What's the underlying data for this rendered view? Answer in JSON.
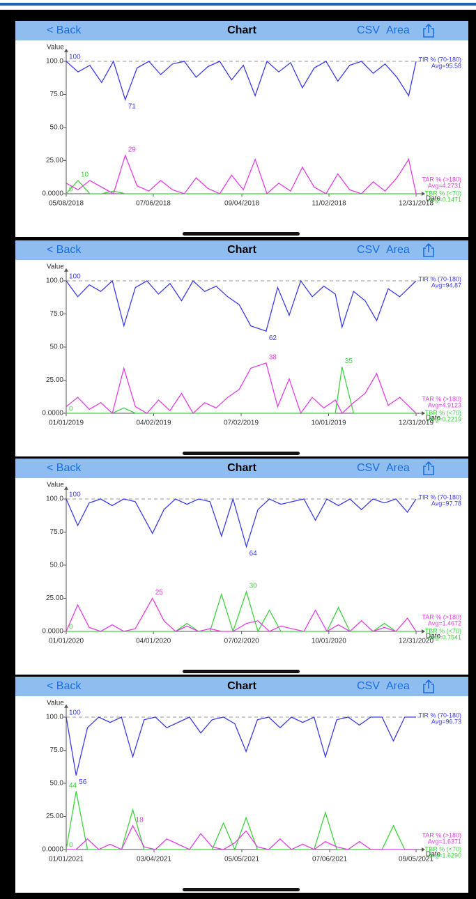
{
  "nav_bars": [
    {
      "back": "< Back",
      "title": "Chart",
      "csv": "CSV",
      "area": "Area"
    },
    {
      "back": "< Back",
      "title": "Chart",
      "csv": "CSV",
      "area": "Area"
    },
    {
      "back": "< Back",
      "title": "Chart",
      "csv": "CSV",
      "area": "Area"
    },
    {
      "back": "< Back",
      "title": "Chart",
      "csv": "CSV",
      "area": "Area"
    }
  ],
  "chart_data": [
    {
      "type": "line",
      "y_label": "Value",
      "x_label": "Date",
      "ylim": [
        0,
        107
      ],
      "reference_line": 100,
      "yticks": [
        {
          "value": 0,
          "label": "0.0000"
        },
        {
          "value": 25,
          "label": "25.00"
        },
        {
          "value": 50,
          "label": "50.0"
        },
        {
          "value": 75,
          "label": "75.0"
        },
        {
          "value": 100,
          "label": "100.0"
        }
      ],
      "xlim": [
        "05/08/2018",
        "12/31/2018"
      ],
      "xticks": [
        "05/08/2018",
        "07/06/2018",
        "09/04/2018",
        "11/02/2018",
        "12/31/2018"
      ],
      "x": [
        "05/08/2018",
        "05/16/2018",
        "05/24/2018",
        "06/01/2018",
        "06/09/2018",
        "06/17/2018",
        "06/25/2018",
        "07/03/2018",
        "07/11/2018",
        "07/19/2018",
        "07/27/2018",
        "08/04/2018",
        "08/12/2018",
        "08/20/2018",
        "08/28/2018",
        "09/05/2018",
        "09/13/2018",
        "09/21/2018",
        "09/29/2018",
        "10/07/2018",
        "10/15/2018",
        "10/23/2018",
        "10/31/2018",
        "11/08/2018",
        "11/16/2018",
        "11/24/2018",
        "12/02/2018",
        "12/10/2018",
        "12/18/2018",
        "12/26/2018",
        "12/31/2018"
      ],
      "series": [
        {
          "name": "TIR % (70-180)",
          "avg_label": "Avg=95.58",
          "color": "#3b3be6",
          "legend": "top",
          "values": [
            100,
            92,
            97,
            84,
            100,
            71,
            95,
            100,
            90,
            98,
            100,
            88,
            96,
            100,
            86,
            97,
            74,
            100,
            92,
            99,
            80,
            95,
            100,
            85,
            97,
            100,
            91,
            98,
            88,
            74,
            100
          ]
        },
        {
          "name": "TAR % (>180)",
          "avg_label": "Avg=4.2731",
          "color": "#e23ee2",
          "legend": "bottom",
          "values": [
            8,
            3,
            10,
            5,
            0,
            29,
            6,
            2,
            10,
            3,
            0,
            12,
            4,
            0,
            14,
            3,
            26,
            0,
            8,
            2,
            20,
            5,
            0,
            15,
            3,
            0,
            9,
            2,
            12,
            26,
            0
          ]
        },
        {
          "name": "TBR % (<70)",
          "avg_label": "Avg=0.1471",
          "color": "#3ed23e",
          "legend": "bottom",
          "values": [
            0,
            10,
            0,
            0,
            2,
            0,
            0,
            0,
            0,
            0,
            0,
            0,
            0,
            0,
            0,
            0,
            0,
            0,
            0,
            0,
            0,
            0,
            0,
            0,
            0,
            0,
            0,
            0,
            0,
            0,
            0
          ]
        }
      ],
      "annotations": [
        {
          "x": "05/08/2018",
          "value": 100,
          "color": "#3b3be6"
        },
        {
          "x": "06/17/2018",
          "value": 71,
          "color": "#3b3be6"
        },
        {
          "x": "06/17/2018",
          "value": 29,
          "color": "#e23ee2"
        },
        {
          "x": "05/16/2018",
          "value": 10,
          "color": "#3ed23e"
        },
        {
          "x": "05/08/2018",
          "value": 0,
          "color": "#3ed23e"
        }
      ]
    },
    {
      "type": "line",
      "y_label": "Value",
      "x_label": "Date",
      "ylim": [
        0,
        107
      ],
      "reference_line": 100,
      "yticks": [
        {
          "value": 0,
          "label": "0.0000"
        },
        {
          "value": 25,
          "label": "25.00"
        },
        {
          "value": 50,
          "label": "50.0"
        },
        {
          "value": 75,
          "label": "75.0"
        },
        {
          "value": 100,
          "label": "100.0"
        }
      ],
      "xlim": [
        "01/01/2019",
        "12/31/2019"
      ],
      "xticks": [
        "01/01/2019",
        "04/02/2019",
        "07/02/2019",
        "10/01/2019",
        "12/31/2019"
      ],
      "x": [
        "01/01/2019",
        "01/13/2019",
        "01/25/2019",
        "02/06/2019",
        "02/18/2019",
        "03/02/2019",
        "03/14/2019",
        "03/26/2019",
        "04/07/2019",
        "04/19/2019",
        "05/01/2019",
        "05/13/2019",
        "05/25/2019",
        "06/06/2019",
        "06/18/2019",
        "06/30/2019",
        "07/12/2019",
        "07/28/2019",
        "08/09/2019",
        "08/21/2019",
        "09/02/2019",
        "09/14/2019",
        "09/26/2019",
        "10/08/2019",
        "10/15/2019",
        "10/27/2019",
        "11/08/2019",
        "11/20/2019",
        "12/02/2019",
        "12/14/2019",
        "12/31/2019"
      ],
      "series": [
        {
          "name": "TIR % (70-180)",
          "avg_label": "Avg=94.87",
          "color": "#3b3be6",
          "legend": "top",
          "values": [
            100,
            88,
            97,
            92,
            100,
            66,
            95,
            100,
            90,
            98,
            85,
            100,
            92,
            96,
            88,
            82,
            66,
            62,
            95,
            74,
            100,
            88,
            96,
            90,
            65,
            92,
            85,
            70,
            94,
            88,
            100
          ]
        },
        {
          "name": "TAR % (>180)",
          "avg_label": "Avg=4.9123",
          "color": "#e23ee2",
          "legend": "bottom",
          "values": [
            5,
            12,
            3,
            8,
            0,
            34,
            5,
            0,
            10,
            2,
            15,
            0,
            8,
            4,
            12,
            18,
            34,
            38,
            5,
            26,
            0,
            12,
            4,
            10,
            0,
            8,
            15,
            30,
            6,
            12,
            0
          ]
        },
        {
          "name": "TBR % (<70)",
          "avg_label": "Avg=0.2219",
          "color": "#3ed23e",
          "legend": "bottom",
          "values": [
            0,
            0,
            0,
            0,
            0,
            4,
            0,
            0,
            0,
            0,
            0,
            0,
            0,
            0,
            0,
            0,
            0,
            0,
            0,
            0,
            0,
            0,
            0,
            0,
            35,
            0,
            0,
            0,
            0,
            0,
            0
          ]
        }
      ],
      "annotations": [
        {
          "x": "01/01/2019",
          "value": 100,
          "color": "#3b3be6"
        },
        {
          "x": "07/28/2019",
          "value": 62,
          "color": "#3b3be6"
        },
        {
          "x": "07/28/2019",
          "value": 38,
          "color": "#e23ee2"
        },
        {
          "x": "10/15/2019",
          "value": 35,
          "color": "#3ed23e"
        },
        {
          "x": "01/01/2019",
          "value": 0,
          "color": "#3ed23e"
        }
      ]
    },
    {
      "type": "line",
      "y_label": "Value",
      "x_label": "Date",
      "ylim": [
        0,
        107
      ],
      "reference_line": 100,
      "yticks": [
        {
          "value": 0,
          "label": "0.0000"
        },
        {
          "value": 25,
          "label": "25.00"
        },
        {
          "value": 50,
          "label": "50.0"
        },
        {
          "value": 75,
          "label": "75.0"
        },
        {
          "value": 100,
          "label": "100.0"
        }
      ],
      "xlim": [
        "01/01/2020",
        "12/31/2020"
      ],
      "xticks": [
        "01/01/2020",
        "04/01/2020",
        "07/02/2020",
        "10/01/2020",
        "12/31/2020"
      ],
      "x": [
        "01/01/2020",
        "01/13/2020",
        "01/25/2020",
        "02/06/2020",
        "02/18/2020",
        "03/01/2020",
        "03/13/2020",
        "03/31/2020",
        "04/12/2020",
        "04/24/2020",
        "05/06/2020",
        "05/18/2020",
        "05/30/2020",
        "06/11/2020",
        "06/23/2020",
        "07/07/2020",
        "07/19/2020",
        "07/31/2020",
        "08/12/2020",
        "08/24/2020",
        "09/05/2020",
        "09/17/2020",
        "09/29/2020",
        "10/11/2020",
        "10/23/2020",
        "11/04/2020",
        "11/16/2020",
        "11/28/2020",
        "12/10/2020",
        "12/22/2020",
        "12/31/2020"
      ],
      "series": [
        {
          "name": "TIR % (70-180)",
          "avg_label": "Avg=97.78",
          "color": "#3b3be6",
          "legend": "top",
          "values": [
            100,
            80,
            97,
            100,
            95,
            100,
            98,
            74,
            92,
            100,
            96,
            100,
            98,
            72,
            100,
            64,
            92,
            100,
            96,
            98,
            100,
            84,
            100,
            95,
            100,
            92,
            100,
            97,
            100,
            90,
            100
          ]
        },
        {
          "name": "TAR % (>180)",
          "avg_label": "Avg=1.4672",
          "color": "#e23ee2",
          "legend": "bottom",
          "values": [
            0,
            20,
            3,
            0,
            5,
            0,
            2,
            25,
            8,
            0,
            4,
            0,
            2,
            0,
            0,
            6,
            8,
            0,
            4,
            2,
            0,
            16,
            0,
            5,
            0,
            8,
            0,
            3,
            0,
            10,
            0
          ]
        },
        {
          "name": "TBR % (<70)",
          "avg_label": "Avg=0.7541",
          "color": "#3ed23e",
          "legend": "bottom",
          "values": [
            0,
            0,
            0,
            0,
            0,
            0,
            0,
            0,
            0,
            0,
            6,
            0,
            0,
            28,
            0,
            30,
            0,
            16,
            0,
            0,
            0,
            0,
            0,
            18,
            0,
            0,
            0,
            6,
            0,
            0,
            0
          ]
        }
      ],
      "annotations": [
        {
          "x": "01/01/2020",
          "value": 100,
          "color": "#3b3be6"
        },
        {
          "x": "07/07/2020",
          "value": 64,
          "color": "#3b3be6"
        },
        {
          "x": "03/31/2020",
          "value": 25,
          "color": "#e23ee2"
        },
        {
          "x": "07/07/2020",
          "value": 30,
          "color": "#3ed23e"
        },
        {
          "x": "01/01/2020",
          "value": 0,
          "color": "#3ed23e"
        }
      ]
    },
    {
      "type": "line",
      "y_label": "Value",
      "x_label": "Date",
      "ylim": [
        0,
        107
      ],
      "reference_line": 100,
      "yticks": [
        {
          "value": 0,
          "label": "0.0000"
        },
        {
          "value": 25,
          "label": "25.00"
        },
        {
          "value": 50,
          "label": "50.0"
        },
        {
          "value": 75,
          "label": "75.0"
        },
        {
          "value": 100,
          "label": "100.0"
        }
      ],
      "xlim": [
        "01/01/2021",
        "09/05/2021"
      ],
      "xticks": [
        "01/01/2021",
        "03/04/2021",
        "05/05/2021",
        "07/06/2021",
        "09/05/2021"
      ],
      "x": [
        "01/01/2021",
        "01/08/2021",
        "01/16/2021",
        "01/24/2021",
        "02/01/2021",
        "02/09/2021",
        "02/17/2021",
        "02/25/2021",
        "03/05/2021",
        "03/13/2021",
        "03/21/2021",
        "03/29/2021",
        "04/06/2021",
        "04/14/2021",
        "04/22/2021",
        "04/30/2021",
        "05/08/2021",
        "05/16/2021",
        "05/24/2021",
        "06/01/2021",
        "06/09/2021",
        "06/17/2021",
        "06/25/2021",
        "07/03/2021",
        "07/11/2021",
        "07/19/2021",
        "07/27/2021",
        "08/04/2021",
        "08/12/2021",
        "08/20/2021",
        "08/28/2021",
        "09/05/2021"
      ],
      "series": [
        {
          "name": "TIR % (70-180)",
          "avg_label": "Avg=96.73",
          "color": "#3b3be6",
          "legend": "top",
          "values": [
            100,
            56,
            92,
            100,
            96,
            100,
            70,
            98,
            100,
            92,
            96,
            100,
            88,
            98,
            100,
            95,
            74,
            98,
            100,
            92,
            100,
            96,
            100,
            70,
            98,
            100,
            94,
            100,
            100,
            82,
            100,
            100
          ]
        },
        {
          "name": "TAR % (>180)",
          "avg_label": "Avg=1.6371",
          "color": "#e23ee2",
          "legend": "bottom",
          "values": [
            0,
            0,
            8,
            0,
            4,
            0,
            18,
            2,
            0,
            8,
            4,
            0,
            12,
            2,
            0,
            5,
            14,
            2,
            0,
            8,
            0,
            4,
            0,
            6,
            2,
            0,
            6,
            0,
            0,
            0,
            0,
            0
          ]
        },
        {
          "name": "TBR % (<70)",
          "avg_label": "Avg=1.6290",
          "color": "#3ed23e",
          "legend": "bottom",
          "values": [
            0,
            44,
            0,
            0,
            0,
            0,
            30,
            0,
            0,
            0,
            0,
            0,
            0,
            0,
            20,
            0,
            24,
            0,
            0,
            0,
            0,
            0,
            0,
            28,
            0,
            0,
            0,
            0,
            0,
            18,
            0,
            0
          ]
        }
      ],
      "annotations": [
        {
          "x": "01/01/2021",
          "value": 100,
          "color": "#3b3be6"
        },
        {
          "x": "01/08/2021",
          "value": 56,
          "color": "#3b3be6"
        },
        {
          "x": "01/01/2021",
          "value": 44,
          "color": "#3ed23e"
        },
        {
          "x": "02/17/2021",
          "value": 18,
          "color": "#e23ee2"
        },
        {
          "x": "01/01/2021",
          "value": 0,
          "color": "#3ed23e"
        }
      ]
    }
  ]
}
